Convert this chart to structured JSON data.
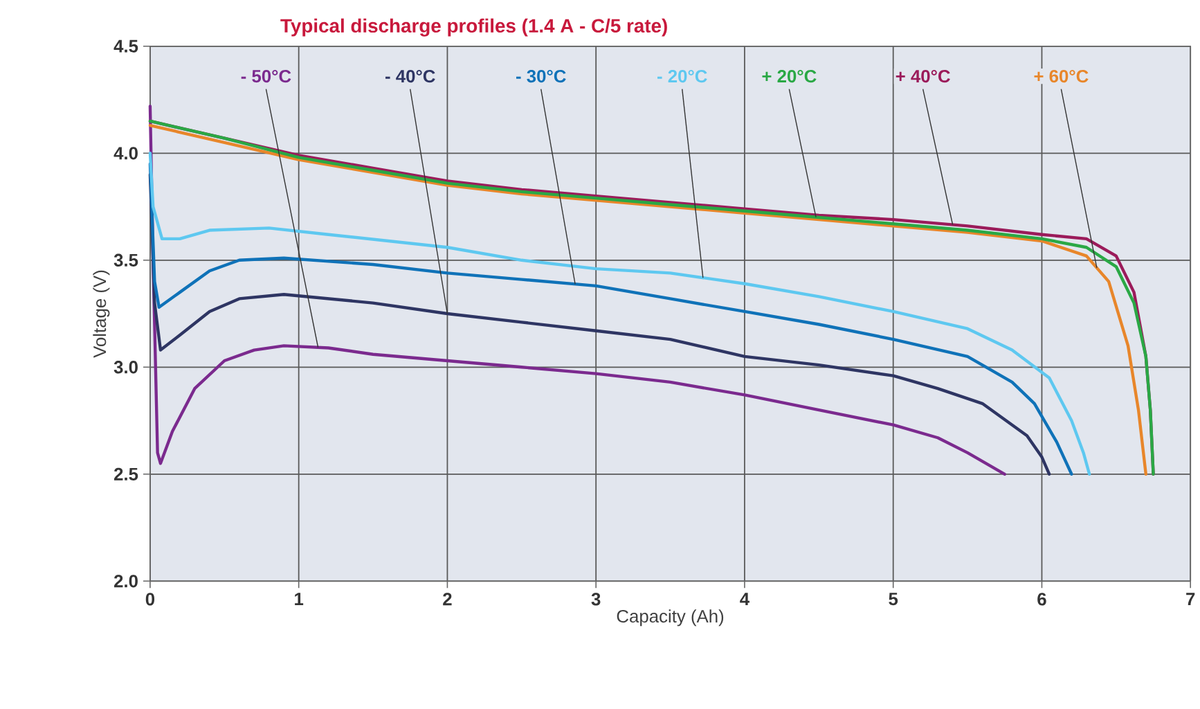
{
  "chart_data": {
    "type": "line",
    "title": "Typical discharge profiles (1.4 A - C/5 rate)",
    "xlabel": "Capacity (Ah)",
    "ylabel": "Voltage (V)",
    "xlim": [
      0,
      7
    ],
    "ylim": [
      2,
      4.5
    ],
    "xticks": [
      0,
      1,
      2,
      3,
      4,
      5,
      6,
      7
    ],
    "yticks": [
      {
        "value": 2,
        "label": "2.0"
      },
      2.5,
      {
        "value": 3,
        "label": "3.0"
      },
      3.5,
      {
        "value": 4,
        "label": "4.0"
      },
      4.5
    ],
    "grid": true,
    "marker": "none",
    "series": [
      {
        "name": "- 50°C",
        "color": "#7b2a8e",
        "x": [
          0,
          0.02,
          0.05,
          0.07,
          0.15,
          0.3,
          0.5,
          0.7,
          0.9,
          1.2,
          1.5,
          2,
          2.5,
          3,
          3.5,
          4,
          4.5,
          5,
          5.3,
          5.5,
          5.75
        ],
        "values": [
          4.22,
          3.5,
          2.6,
          2.55,
          2.7,
          2.9,
          3.03,
          3.08,
          3.1,
          3.09,
          3.06,
          3.03,
          3.0,
          2.97,
          2.93,
          2.87,
          2.8,
          2.73,
          2.67,
          2.6,
          2.5
        ]
      },
      {
        "name": "- 40°C",
        "color": "#2e3563",
        "x": [
          0,
          0.03,
          0.07,
          0.2,
          0.4,
          0.6,
          0.9,
          1.5,
          2,
          2.5,
          3,
          3.5,
          4,
          4.5,
          5,
          5.3,
          5.6,
          5.9,
          6.0,
          6.05
        ],
        "values": [
          3.9,
          3.3,
          3.08,
          3.15,
          3.26,
          3.32,
          3.34,
          3.3,
          3.25,
          3.21,
          3.17,
          3.13,
          3.05,
          3.01,
          2.96,
          2.9,
          2.83,
          2.68,
          2.58,
          2.5
        ]
      },
      {
        "name": "- 30°C",
        "color": "#0f72b8",
        "x": [
          0,
          0.03,
          0.06,
          0.2,
          0.4,
          0.6,
          0.9,
          1.5,
          2,
          2.5,
          3,
          3.5,
          4,
          4.5,
          5,
          5.5,
          5.8,
          5.95,
          6.1,
          6.2
        ],
        "values": [
          3.95,
          3.4,
          3.28,
          3.35,
          3.45,
          3.5,
          3.51,
          3.48,
          3.44,
          3.41,
          3.38,
          3.32,
          3.26,
          3.2,
          3.13,
          3.05,
          2.93,
          2.83,
          2.65,
          2.5
        ]
      },
      {
        "name": "- 20°C",
        "color": "#5ec8f0",
        "x": [
          0,
          0.02,
          0.08,
          0.2,
          0.4,
          0.8,
          1.2,
          2,
          2.5,
          3,
          3.5,
          4,
          4.5,
          5,
          5.5,
          5.8,
          6.05,
          6.2,
          6.28,
          6.32
        ],
        "values": [
          4.0,
          3.75,
          3.6,
          3.6,
          3.64,
          3.65,
          3.62,
          3.56,
          3.5,
          3.46,
          3.44,
          3.39,
          3.33,
          3.26,
          3.18,
          3.08,
          2.95,
          2.75,
          2.6,
          2.5
        ]
      },
      {
        "name": "+ 60°C",
        "color": "#e8862a",
        "x": [
          0,
          0.5,
          1,
          1.5,
          2,
          2.5,
          3,
          3.5,
          4,
          4.5,
          5,
          5.5,
          6,
          6.3,
          6.45,
          6.58,
          6.65,
          6.7
        ],
        "values": [
          4.13,
          4.05,
          3.97,
          3.91,
          3.85,
          3.81,
          3.78,
          3.75,
          3.72,
          3.69,
          3.66,
          3.63,
          3.59,
          3.52,
          3.4,
          3.1,
          2.8,
          2.5
        ]
      },
      {
        "name": "+ 40°C",
        "color": "#9b1b5a",
        "x": [
          0,
          0.5,
          1,
          1.5,
          2,
          2.5,
          3,
          3.5,
          4,
          4.5,
          5,
          5.5,
          6,
          6.3,
          6.5,
          6.62,
          6.7,
          6.73,
          6.75
        ],
        "values": [
          4.15,
          4.07,
          3.99,
          3.93,
          3.87,
          3.83,
          3.8,
          3.77,
          3.74,
          3.71,
          3.69,
          3.66,
          3.62,
          3.6,
          3.52,
          3.35,
          3.05,
          2.8,
          2.5
        ]
      },
      {
        "name": "+ 20°C",
        "color": "#2aa845",
        "x": [
          0,
          0.5,
          1,
          1.5,
          2,
          2.5,
          3,
          3.5,
          4,
          4.5,
          5,
          5.5,
          6,
          6.3,
          6.5,
          6.62,
          6.7,
          6.73,
          6.75
        ],
        "values": [
          4.15,
          4.07,
          3.98,
          3.92,
          3.86,
          3.82,
          3.79,
          3.76,
          3.73,
          3.7,
          3.67,
          3.64,
          3.6,
          3.56,
          3.47,
          3.3,
          3.05,
          2.8,
          2.5
        ]
      }
    ]
  }
}
